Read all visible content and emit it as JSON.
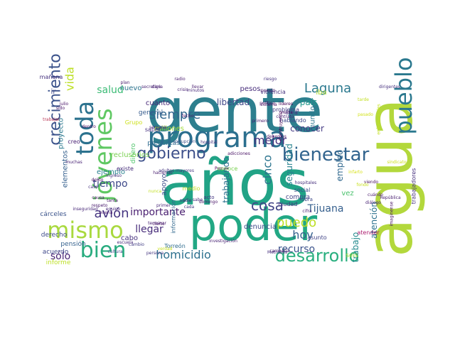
{
  "words": [
    {
      "text": "gente",
      "color": "#2d7f8e",
      "vertical": false
    },
    {
      "text": "años",
      "color": "#21a386",
      "vertical": false
    },
    {
      "text": "agua",
      "color": "#b3d83c",
      "vertical": true
    },
    {
      "text": "poder",
      "color": "#22a884",
      "vertical": false
    },
    {
      "text": "programa",
      "color": "#2b6f8e",
      "vertical": false
    },
    {
      "text": "jóvenes",
      "color": "#5fc862",
      "vertical": true
    },
    {
      "text": "mismo",
      "color": "#a9d93e",
      "vertical": false
    },
    {
      "text": "bien",
      "color": "#29ac7f",
      "vertical": false
    },
    {
      "text": "toda",
      "color": "#2c728e",
      "vertical": true
    },
    {
      "text": "pueblo",
      "color": "#2a788e",
      "vertical": true
    },
    {
      "text": "bienestar",
      "color": "#32648e",
      "vertical": false
    },
    {
      "text": "crecimiento",
      "color": "#3b528b",
      "vertical": true
    },
    {
      "text": "gobierno",
      "color": "#3c4f8a",
      "vertical": false
    },
    {
      "text": "desarrollo",
      "color": "#29af7f",
      "vertical": false
    },
    {
      "text": "homicidio",
      "color": "#2d708e",
      "vertical": false
    },
    {
      "text": "siempre",
      "color": "#31668e",
      "vertical": false
    },
    {
      "text": "avión",
      "color": "#453581",
      "vertical": false
    },
    {
      "text": "cosa",
      "color": "#414487",
      "vertical": false
    },
    {
      "text": "Laguna",
      "color": "#2a788e",
      "vertical": false
    },
    {
      "text": "salud",
      "color": "#3bbb75",
      "vertical": false
    },
    {
      "text": "vida",
      "color": "#bddf26",
      "vertical": true
    },
    {
      "text": "cinco",
      "color": "#2b748e",
      "vertical": true
    },
    {
      "text": "mejor",
      "color": "#46327e",
      "vertical": false
    },
    {
      "text": "puedo",
      "color": "#bddf26",
      "vertical": false
    },
    {
      "text": "hoy",
      "color": "#34618d",
      "vertical": false
    },
    {
      "text": "sólo",
      "color": "#482475",
      "vertical": false
    },
    {
      "text": "tiempo",
      "color": "#3e4989",
      "vertical": false
    },
    {
      "text": "importante",
      "color": "#481d6f",
      "vertical": false
    },
    {
      "text": "llegar",
      "color": "#472c7a",
      "vertical": false
    },
    {
      "text": "recurso",
      "color": "#3b528b",
      "vertical": false
    },
    {
      "text": "Tijuana",
      "color": "#355f8d",
      "vertical": false
    },
    {
      "text": "trabajo",
      "color": "#238a8d",
      "vertical": true
    },
    {
      "text": "atención",
      "color": "#2c718e",
      "vertical": true
    },
    {
      "text": "empleo",
      "color": "#31688e",
      "vertical": true
    },
    {
      "text": "seguridad",
      "color": "#26828e",
      "vertical": true
    },
    {
      "text": "libertad",
      "color": "#3f4788",
      "vertical": false
    },
    {
      "text": "conocer",
      "color": "#443a83",
      "vertical": false
    },
    {
      "text": "mundo",
      "color": "#2a768e",
      "vertical": true
    },
    {
      "text": "trabajando",
      "color": "#2d718e",
      "vertical": true
    },
    {
      "text": "país",
      "color": "#1f988b",
      "vertical": false
    },
    {
      "text": "iba",
      "color": "#addc30",
      "vertical": false
    },
    {
      "text": "vez",
      "color": "#4ac16d",
      "vertical": false
    },
    {
      "text": "nuevo",
      "color": "#2c738e",
      "vertical": false
    },
    {
      "text": "cuánto",
      "color": "#482878",
      "vertical": false
    },
    {
      "text": "pesos",
      "color": "#472d7b",
      "vertical": false
    },
    {
      "text": "violencia",
      "color": "#46337f",
      "vertical": false
    },
    {
      "text": "denuncia",
      "color": "#3e4a89",
      "vertical": false
    },
    {
      "text": "cabo",
      "color": "#46307e",
      "vertical": false
    },
    {
      "text": "ir",
      "color": "#3e4989",
      "vertical": false
    },
    {
      "text": "ejemplo",
      "color": "#27808e",
      "vertical": false
    },
    {
      "text": "proyecto",
      "color": "#2a788e",
      "vertical": true
    },
    {
      "text": "elementos",
      "color": "#35608d",
      "vertical": true
    },
    {
      "text": "apoyo",
      "color": "#3d4e8a",
      "vertical": true
    },
    {
      "text": "hablando",
      "color": "#3f4788",
      "vertical": false
    },
    {
      "text": "área",
      "color": "#472f7d",
      "vertical": false
    },
    {
      "text": "dinero",
      "color": "#4fc46a",
      "vertical": true
    },
    {
      "text": "millones",
      "color": "#a0da39",
      "vertical": false
    },
    {
      "text": "general",
      "color": "#365c8d",
      "vertical": false
    },
    {
      "text": "problema",
      "color": "#433e85",
      "vertical": false
    },
    {
      "text": "compra",
      "color": "#414287",
      "vertical": false
    },
    {
      "text": "social",
      "color": "#3d4d8a",
      "vertical": false
    },
    {
      "text": "cárceles",
      "color": "#3a538b",
      "vertical": false
    },
    {
      "text": "pensión",
      "color": "#34618d",
      "vertical": false
    },
    {
      "text": "acuerdo",
      "color": "#3f4889",
      "vertical": false
    },
    {
      "text": "derecho",
      "color": "#3e4c8a",
      "vertical": false
    },
    {
      "text": "informe",
      "color": "#bddf26",
      "vertical": false
    },
    {
      "text": "seis",
      "color": "#a2da37",
      "vertical": false
    },
    {
      "text": "asunto",
      "color": "#414487",
      "vertical": false
    },
    {
      "text": "ciudad",
      "color": "#46327e",
      "vertical": false
    },
    {
      "text": "reclusorios",
      "color": "#7ad151",
      "vertical": false
    },
    {
      "text": "existe",
      "color": "#472c7a",
      "vertical": false
    },
    {
      "text": "información",
      "color": "#31688e",
      "vertical": true
    },
    {
      "text": "Torreón",
      "color": "#2f6c8e",
      "vertical": false
    },
    {
      "text": "preguntas",
      "color": "#2f6b8e",
      "vertical": false
    },
    {
      "text": "saber",
      "color": "#46307e",
      "vertical": false
    },
    {
      "text": "creo",
      "color": "#482173",
      "vertical": false
    },
    {
      "text": "medio",
      "color": "#c0df25",
      "vertical": false
    },
    {
      "text": "acto",
      "color": "#453882",
      "vertical": false
    },
    {
      "text": "mañana",
      "color": "#46327e",
      "vertical": false
    },
    {
      "text": "obra",
      "color": "#3e4989",
      "vertical": false
    },
    {
      "text": "atender",
      "color": "#ad1d6f",
      "vertical": false
    },
    {
      "text": "trabajadores",
      "color": "#46307e",
      "vertical": true
    },
    {
      "text": "imaginense",
      "color": "#471365",
      "vertical": true
    },
    {
      "text": "Grupo",
      "color": "#cde11d",
      "vertical": false
    },
    {
      "text": "enfermedades",
      "color": "#c5e021",
      "vertical": true
    },
    {
      "text": "hospitales",
      "color": "#472f7d",
      "vertical": false
    },
    {
      "text": "plan",
      "color": "#481c6e",
      "vertical": false
    },
    {
      "text": "secretaria",
      "color": "#482576",
      "vertical": false
    },
    {
      "text": "adultos mayores",
      "color": "#453781",
      "vertical": false
    },
    {
      "text": "corrupción",
      "color": "#3b518b",
      "vertical": false
    },
    {
      "text": "hospital",
      "color": "#463480",
      "vertical": false
    },
    {
      "text": "adicciones",
      "color": "#471063",
      "vertical": false
    },
    {
      "text": "Pemex",
      "color": "#440154",
      "vertical": false
    },
    {
      "text": "sindicato",
      "color": "#cde11d",
      "vertical": false
    },
    {
      "text": "viendo",
      "color": "#470d60",
      "vertical": false
    },
    {
      "text": "infarto",
      "color": "#d8e219",
      "vertical": false
    },
    {
      "text": "líderes",
      "color": "#440154",
      "vertical": false
    },
    {
      "text": "político",
      "color": "#471365",
      "vertical": false
    },
    {
      "text": "dirigentes",
      "color": "#46307e",
      "vertical": false
    },
    {
      "text": "primero",
      "color": "#481c6e",
      "vertical": false
    },
    {
      "text": "cultura",
      "color": "#3f4889",
      "vertical": false
    },
    {
      "text": "cambio",
      "color": "#433e85",
      "vertical": false
    },
    {
      "text": "persona",
      "color": "#453781",
      "vertical": false
    },
    {
      "text": "escuela",
      "color": "#472a7a",
      "vertical": false
    },
    {
      "text": "Metrobús",
      "color": "#46307e",
      "vertical": false
    },
    {
      "text": "investigación",
      "color": "#482374",
      "vertical": false
    },
    {
      "text": "nunca",
      "color": "#c2df23",
      "vertical": false
    },
    {
      "text": "campaña",
      "color": "#482071",
      "vertical": false
    },
    {
      "text": "causa",
      "color": "#481467",
      "vertical": false
    },
    {
      "text": "delito",
      "color": "#470e61",
      "vertical": false
    },
    {
      "text": "tanta",
      "color": "#481769",
      "vertical": false
    },
    {
      "text": "equipo",
      "color": "#482979",
      "vertical": false
    },
    {
      "text": "casa",
      "color": "#46327e",
      "vertical": false
    },
    {
      "text": "buena",
      "color": "#481b6d",
      "vertical": false
    },
    {
      "text": "muchas",
      "color": "#482374",
      "vertical": false
    },
    {
      "text": "ingreso",
      "color": "#46307e",
      "vertical": false
    },
    {
      "text": "haciendo",
      "color": "#481d6f",
      "vertical": false
    },
    {
      "text": "nadie",
      "color": "#482576",
      "vertical": false
    },
    {
      "text": "sabe",
      "color": "#472d7b",
      "vertical": false
    },
    {
      "text": "cada",
      "color": "#453781",
      "vertical": false
    },
    {
      "text": "domingo",
      "color": "#481467",
      "vertical": false
    },
    {
      "text": "primer",
      "color": "#482878",
      "vertical": false
    },
    {
      "text": "minutos",
      "color": "#482979",
      "vertical": false
    },
    {
      "text": "crisis",
      "color": "#482475",
      "vertical": false
    },
    {
      "text": "radio",
      "color": "#481c6e",
      "vertical": false
    },
    {
      "text": "digo",
      "color": "#482071",
      "vertical": false
    },
    {
      "text": "puesto",
      "color": "#481769",
      "vertical": false
    },
    {
      "text": "riesgo",
      "color": "#46327e",
      "vertical": false
    },
    {
      "text": "venta",
      "color": "#471365",
      "vertical": false
    },
    {
      "text": "contrato",
      "color": "#482576",
      "vertical": false
    },
    {
      "text": "pasado",
      "color": "#d2e21b",
      "vertical": false
    },
    {
      "text": "República",
      "color": "#481d6f",
      "vertical": false
    },
    {
      "text": "diálogo",
      "color": "#482475",
      "vertical": false
    },
    {
      "text": "cierto",
      "color": "#471063",
      "vertical": false
    },
    {
      "text": "verdad",
      "color": "#c8e020",
      "vertical": false
    },
    {
      "text": "terminar",
      "color": "#482071",
      "vertical": false
    },
    {
      "text": "respeto",
      "color": "#481a6c",
      "vertical": false
    },
    {
      "text": "inseguridad",
      "color": "#482878",
      "vertical": false
    },
    {
      "text": "julio",
      "color": "#481467",
      "vertical": false
    },
    {
      "text": "sido",
      "color": "#481769",
      "vertical": false
    },
    {
      "text": "trabajar",
      "color": "#ba3655",
      "vertical": false
    },
    {
      "text": "dentro",
      "color": "#470e61",
      "vertical": false
    },
    {
      "text": "semana",
      "color": "#482173",
      "vertical": false
    },
    {
      "text": "llevar",
      "color": "#481c6e",
      "vertical": false
    },
    {
      "text": "fecho",
      "color": "#471365",
      "vertical": false
    },
    {
      "text": "cuándo",
      "color": "#481a6c",
      "vertical": false
    },
    {
      "text": "fondo",
      "color": "#c8e020",
      "vertical": false
    },
    {
      "text": "cifra",
      "color": "#482173",
      "vertical": false
    },
    {
      "text": "sistema",
      "color": "#470d60",
      "vertical": false
    },
    {
      "text": "Construyendo",
      "color": "#440154",
      "vertical": true
    },
    {
      "text": "debemos",
      "color": "#471063",
      "vertical": false
    },
    {
      "text": "tarde",
      "color": "#c2df23",
      "vertical": false
    },
    {
      "text": "conoce",
      "color": "#7ad151",
      "vertical": false
    }
  ]
}
